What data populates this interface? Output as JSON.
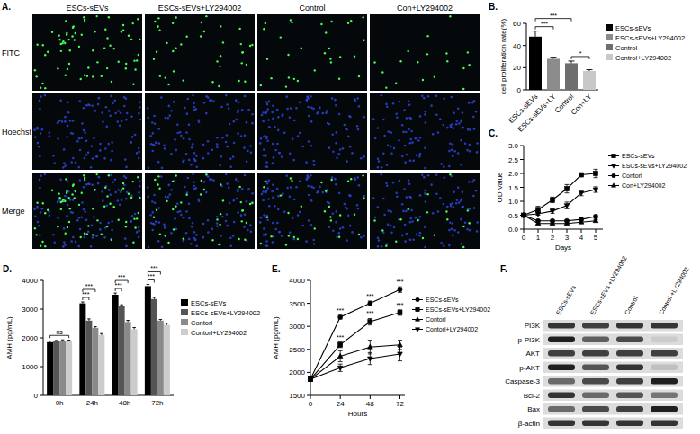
{
  "microscopy": {
    "label": "A.",
    "columns": [
      "ESCs-sEVs",
      "ESCs-sEVs+LY294002",
      "Control",
      "Con+LY294002"
    ],
    "rows": [
      "FITC",
      "Hoechst",
      "Merge"
    ]
  },
  "chart_data": [
    {
      "type": "bar",
      "title": "B.",
      "y_label": "cell proliferation rate(%)",
      "categories": [
        "ESCs-sEVs",
        "ESCs-sEVs+LY",
        "Control",
        "Con+LY"
      ],
      "series": [
        {
          "name": "ESCs-sEVs",
          "color": "#000000",
          "values": [
            48,
            null,
            null,
            null
          ],
          "errors": [
            5,
            null,
            null,
            null
          ]
        },
        {
          "name": "ESCs-sEVs+LY294002",
          "color": "#8c8c8c",
          "values": [
            null,
            28,
            null,
            null
          ],
          "errors": [
            null,
            1.5,
            null,
            null
          ]
        },
        {
          "name": "Control",
          "color": "#6e6e6e",
          "values": [
            null,
            null,
            24,
            null
          ],
          "errors": [
            null,
            null,
            2,
            null
          ]
        },
        {
          "name": "Control+LY294002",
          "color": "#c8c8c8",
          "values": [
            null,
            null,
            null,
            17
          ],
          "errors": [
            null,
            null,
            null,
            1.2
          ]
        }
      ],
      "ylim": [
        0,
        60
      ],
      "yticks": [
        0,
        20,
        40,
        60
      ],
      "grid": false,
      "legend": "right",
      "annotations": [
        {
          "text": "***",
          "series": [
            0,
            1
          ]
        },
        {
          "text": "***",
          "series": [
            0,
            2
          ]
        },
        {
          "text": "*",
          "series": [
            2,
            3
          ]
        }
      ]
    },
    {
      "type": "line",
      "title": "C.",
      "x_label": "Days",
      "y_label": "OD Value",
      "x": [
        0,
        1,
        2,
        3,
        4,
        5
      ],
      "series": [
        {
          "name": "ESCs-sEVs",
          "color": "#000000",
          "marker": "square",
          "values": [
            0.5,
            0.7,
            1.05,
            1.45,
            1.95,
            2.0
          ],
          "errors": [
            0.05,
            0.12,
            0.1,
            0.15,
            0.04,
            0.15
          ]
        },
        {
          "name": "ESCs-sEVs+LY294002",
          "color": "#000000",
          "marker": "triangle-down",
          "values": [
            0.5,
            0.55,
            0.65,
            0.85,
            1.3,
            1.42
          ],
          "errors": [
            0.05,
            0.05,
            0.08,
            0.12,
            0.1,
            0.1
          ]
        },
        {
          "name": "Contorl",
          "color": "#000000",
          "marker": "circle",
          "values": [
            0.5,
            0.3,
            0.3,
            0.3,
            0.35,
            0.45
          ],
          "errors": [
            0.05,
            0.04,
            0.04,
            0.04,
            0.05,
            0.06
          ]
        },
        {
          "name": "Con+LY294002",
          "color": "#000000",
          "marker": "triangle-up",
          "values": [
            0.5,
            0.2,
            0.2,
            0.2,
            0.25,
            0.3
          ],
          "errors": [
            0.05,
            0.03,
            0.03,
            0.03,
            0.04,
            0.04
          ]
        }
      ],
      "xlim": [
        0,
        5.5
      ],
      "xticks": [
        0,
        1,
        2,
        3,
        4,
        5
      ],
      "ylim": [
        0,
        3
      ],
      "yticks": [
        {
          "value": 0,
          "label": "0.0"
        },
        0.5,
        {
          "value": 1,
          "label": "1.0"
        },
        1.5,
        {
          "value": 2,
          "label": "2.0"
        },
        2.5,
        {
          "value": 3,
          "label": "3.0"
        }
      ],
      "grid": false,
      "legend": "right"
    },
    {
      "type": "bar",
      "title": "D.",
      "y_label": "AMH (pg/mL)",
      "categories": [
        "0h",
        "24h",
        "48h",
        "72h"
      ],
      "series": [
        {
          "name": "ESCs-sEVs",
          "color": "#000000",
          "values": [
            1850,
            3200,
            3500,
            3800
          ],
          "errors": [
            40,
            50,
            60,
            60
          ]
        },
        {
          "name": "ESCs-sEVs+LY294002",
          "color": "#555555",
          "values": [
            1880,
            2600,
            3100,
            3350
          ],
          "errors": [
            30,
            60,
            50,
            60
          ]
        },
        {
          "name": "Contorl",
          "color": "#8a8a8a",
          "values": [
            1900,
            2350,
            2550,
            2600
          ],
          "errors": [
            30,
            40,
            60,
            40
          ]
        },
        {
          "name": "Contorl+LY294002",
          "color": "#cccccc",
          "values": [
            1880,
            2100,
            2300,
            2450
          ],
          "errors": [
            40,
            50,
            60,
            60
          ]
        }
      ],
      "ylim": [
        0,
        4000
      ],
      "yticks": [
        0,
        1000,
        2000,
        3000,
        4000
      ],
      "grid": false,
      "legend": "right",
      "annotations": [
        {
          "text": "ns",
          "category": 0,
          "series": [
            0,
            3
          ]
        },
        {
          "text": "***",
          "category": 1,
          "series": [
            0,
            1
          ]
        },
        {
          "text": "***",
          "category": 1,
          "series": [
            0,
            2
          ]
        },
        {
          "text": "***",
          "category": 2,
          "series": [
            0,
            1
          ]
        },
        {
          "text": "***",
          "category": 2,
          "series": [
            0,
            2
          ]
        },
        {
          "text": "***",
          "category": 3,
          "series": [
            0,
            1
          ]
        },
        {
          "text": "***",
          "category": 3,
          "series": [
            0,
            2
          ]
        }
      ]
    },
    {
      "type": "line",
      "title": "E.",
      "x_label": "Hours",
      "y_label": "AMH (pg/mL)",
      "x": [
        0,
        24,
        48,
        72
      ],
      "series": [
        {
          "name": "ESCs-sEVs",
          "color": "#000000",
          "marker": "circle",
          "values": [
            1850,
            3200,
            3500,
            3800
          ],
          "errors": [
            40,
            40,
            50,
            60
          ]
        },
        {
          "name": "ESCs-sEVs+LY294002",
          "color": "#000000",
          "marker": "square",
          "values": [
            1850,
            2600,
            3100,
            3300
          ],
          "errors": [
            40,
            60,
            70,
            60
          ]
        },
        {
          "name": "Contorl",
          "color": "#000000",
          "marker": "triangle-up",
          "values": [
            1850,
            2350,
            2550,
            2600
          ],
          "errors": [
            40,
            120,
            150,
            100
          ]
        },
        {
          "name": "Contorl+LY294002",
          "color": "#000000",
          "marker": "triangle-down",
          "values": [
            1850,
            2100,
            2300,
            2400
          ],
          "errors": [
            40,
            80,
            130,
            150
          ]
        }
      ],
      "xlim": [
        0,
        76
      ],
      "xticks": [
        0,
        24,
        48,
        72
      ],
      "ylim": [
        1500,
        4000
      ],
      "yticks": [
        1500,
        2000,
        2500,
        3000,
        3500,
        4000
      ],
      "grid": false,
      "legend": "right",
      "annotations": [
        {
          "text": "***",
          "series": 0,
          "x_index": 1
        },
        {
          "text": "***",
          "series": 0,
          "x_index": 2
        },
        {
          "text": "***",
          "series": 0,
          "x_index": 3
        },
        {
          "text": "***",
          "series": 1,
          "x_index": 1
        },
        {
          "text": "***",
          "series": 1,
          "x_index": 2
        },
        {
          "text": "***",
          "series": 1,
          "x_index": 3
        }
      ]
    }
  ],
  "western_blot": {
    "label": "F.",
    "columns": [
      "ESCs-sEVs",
      "ESCs-sEVs +LY294002",
      "Control",
      "Control +LY294002"
    ],
    "rows": [
      {
        "name": "PI3K",
        "intensities": [
          0.85,
          0.8,
          0.85,
          0.85
        ]
      },
      {
        "name": "p-PI3K",
        "intensities": [
          0.95,
          0.65,
          0.75,
          0.15
        ]
      },
      {
        "name": "AKT",
        "intensities": [
          0.8,
          0.8,
          0.8,
          0.8
        ]
      },
      {
        "name": "p-AKT",
        "intensities": [
          0.95,
          0.7,
          0.85,
          0.2
        ]
      },
      {
        "name": "Caspase-3",
        "intensities": [
          0.6,
          0.75,
          0.8,
          0.95
        ]
      },
      {
        "name": "Bcl-2",
        "intensities": [
          0.85,
          0.6,
          0.7,
          0.55
        ]
      },
      {
        "name": "Bax",
        "intensities": [
          0.6,
          0.75,
          0.8,
          0.95
        ]
      },
      {
        "name": "β-actin",
        "intensities": [
          0.85,
          0.85,
          0.85,
          0.85
        ]
      }
    ]
  }
}
